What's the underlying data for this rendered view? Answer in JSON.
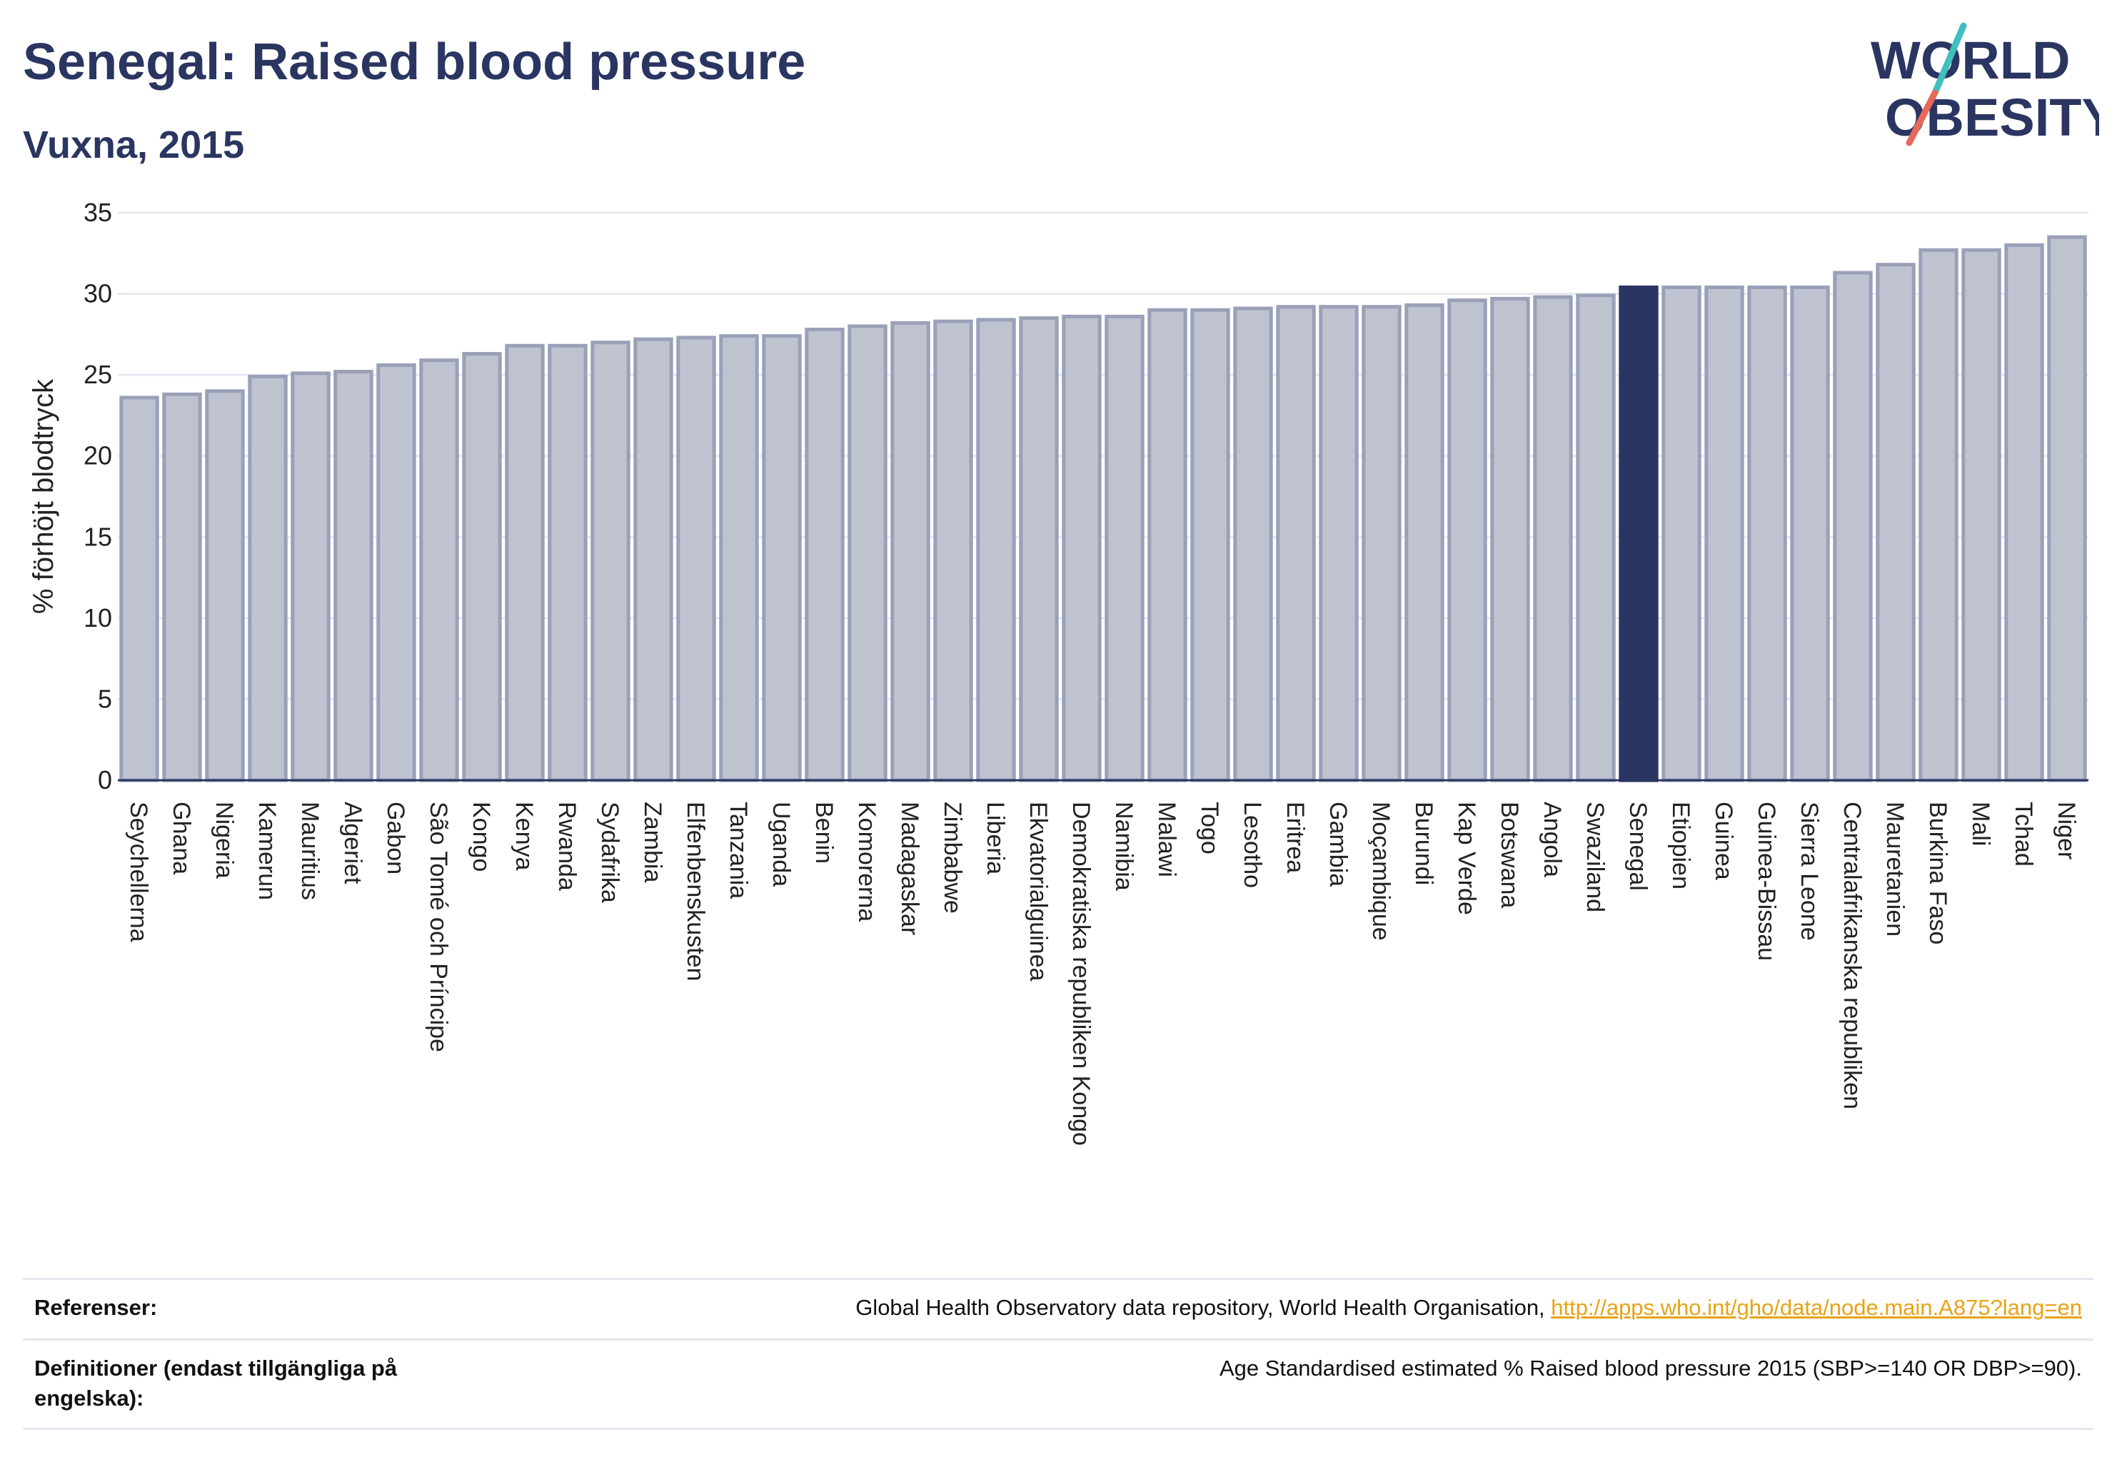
{
  "header": {
    "title": "Senegal: Raised blood pressure",
    "subtitle": "Vuxna, 2015"
  },
  "logo": {
    "line1": "WORLD",
    "line2": "OBESITY",
    "slash_top_color": "#3fbfbf",
    "slash_bottom_color": "#e8685a",
    "text_color": "#2a3561"
  },
  "colors": {
    "bar_fill": "#bfc3d0",
    "bar_stroke": "#9aa0b8",
    "highlight": "#2a3561",
    "grid": "#e6e8f0",
    "axis": "#2a3561"
  },
  "chart_data": {
    "type": "bar",
    "title": "Senegal: Raised blood pressure",
    "subtitle": "Vuxna, 2015",
    "xlabel": "",
    "ylabel": "% förhöjt blodtryck",
    "ylim": [
      0,
      35
    ],
    "yticks": [
      0,
      5,
      10,
      15,
      20,
      25,
      30,
      35
    ],
    "grid": true,
    "highlight_category": "Senegal",
    "categories": [
      "Seychellerna",
      "Ghana",
      "Nigeria",
      "Kamerun",
      "Mauritius",
      "Algeriet",
      "Gabon",
      "São Tomé och Príncipe",
      "Kongo",
      "Kenya",
      "Rwanda",
      "Sydafrika",
      "Zambia",
      "Elfenbenskusten",
      "Tanzania",
      "Uganda",
      "Benin",
      "Komorerna",
      "Madagaskar",
      "Zimbabwe",
      "Liberia",
      "Ekvatorialguinea",
      "Demokratiska republiken Kongo",
      "Namibia",
      "Malawi",
      "Togo",
      "Lesotho",
      "Eritrea",
      "Gambia",
      "Moçambique",
      "Burundi",
      "Kap Verde",
      "Botswana",
      "Angola",
      "Swaziland",
      "Senegal",
      "Etiopien",
      "Guinea",
      "Guinea-Bissau",
      "Sierra Leone",
      "Centralafrikanska republiken",
      "Mauretanien",
      "Burkina Faso",
      "Mali",
      "Tchad",
      "Niger"
    ],
    "values": [
      23.6,
      23.8,
      24.0,
      24.9,
      25.1,
      25.2,
      25.6,
      25.9,
      26.3,
      26.8,
      26.8,
      27.0,
      27.2,
      27.3,
      27.4,
      27.4,
      27.8,
      28.0,
      28.2,
      28.3,
      28.4,
      28.5,
      28.6,
      28.6,
      29.0,
      29.0,
      29.1,
      29.2,
      29.2,
      29.2,
      29.3,
      29.6,
      29.7,
      29.8,
      29.9,
      30.4,
      30.4,
      30.4,
      30.4,
      30.4,
      31.3,
      31.8,
      32.7,
      32.7,
      33.0,
      33.5
    ]
  },
  "references": {
    "ref_label": "Referenser:",
    "ref_text": "Global Health Observatory data repository, World Health Organisation, ",
    "ref_link": "http://apps.who.int/gho/data/node.main.A875?lang=en",
    "def_label": "Definitioner (endast tillgängliga på engelska):",
    "def_text": "Age Standardised estimated % Raised blood pressure 2015 (SBP>=140 OR DBP>=90)."
  }
}
